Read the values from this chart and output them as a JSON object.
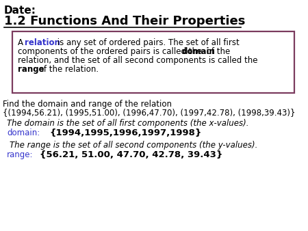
{
  "title_line1": "Date:",
  "title_line2": "1.2 Functions And Their Properties",
  "find_line1": "Find the domain and range of the relation",
  "find_line2": "{(1994,56.21), (1995,51.00), (1996,47.70), (1997,42.78), (1998,39.43)}",
  "domain_italic": "The domain is the set of all first components (the x-values).",
  "domain_label": "domain:",
  "domain_value": "{1994,1995,1996,1997,1998}",
  "range_italic": "The range is the set of all second components (the y-values).",
  "range_label": "range:",
  "range_value": "{56.21, 51.00, 47.70, 42.78, 39.43}",
  "bg_color": "#ffffff",
  "box_border_color": "#7B3B5E",
  "blue_color": "#3333CC",
  "black": "#000000",
  "box_line1_normal1": "A ",
  "box_line1_bold_blue": "relation",
  "box_line1_normal2": " is any set of ordered pairs. The set of all first",
  "box_line2": "components of the ordered pairs is called the ",
  "box_line2_bold": "domain",
  "box_line2_end": " of the",
  "box_line3": "relation, and the set of all second components is called the",
  "box_line4_bold": "range",
  "box_line4_end": " of the relation."
}
